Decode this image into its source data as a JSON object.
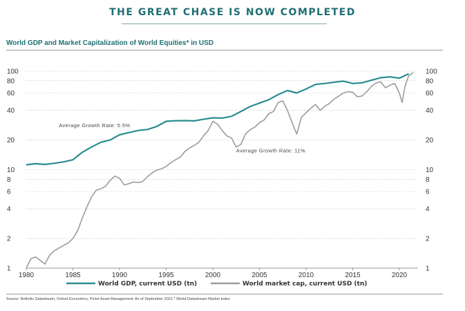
{
  "header": {
    "headline": "THE GREAT CHASE IS NOW COMPLETED",
    "subtitle": "World GDP and Market Capitalization of World Equities* in USD",
    "source": "Source: Refinitiv Datastream, Oxford Economics, Pictet Asset Management. As of September 2021.* World-Datastream Market Index"
  },
  "colors": {
    "gdp": "#2a8c8f",
    "market": "#9b9b9b",
    "grid": "#b9b9b9",
    "text": "#333333"
  },
  "chart_data": {
    "type": "line",
    "yscale": "log",
    "ylim": [
      1,
      100
    ],
    "xlim": [
      1980,
      2022
    ],
    "y_ticks": [
      1,
      2,
      4,
      6,
      8,
      10,
      20,
      40,
      60,
      80,
      100
    ],
    "x_ticks": [
      1980,
      1985,
      1990,
      1995,
      2000,
      2005,
      2010,
      2015,
      2020
    ],
    "grid": true,
    "legend_position": "bottom",
    "annotations": [
      {
        "text": "Average Growth Rate: 5.5%",
        "x": 1983.5,
        "y": 27
      },
      {
        "text": "Average Growth Rate: 11%",
        "x": 2002.5,
        "y": 15
      }
    ],
    "series": [
      {
        "name": "World GDP, current USD (tn)",
        "color": "#2a8c8f",
        "points": [
          [
            1980,
            11.2
          ],
          [
            1981,
            11.5
          ],
          [
            1982,
            11.3
          ],
          [
            1983,
            11.6
          ],
          [
            1984,
            12.0
          ],
          [
            1985,
            12.6
          ],
          [
            1986,
            15.0
          ],
          [
            1987,
            17.0
          ],
          [
            1988,
            19.0
          ],
          [
            1989,
            20.0
          ],
          [
            1990,
            22.6
          ],
          [
            1991,
            23.8
          ],
          [
            1992,
            25.0
          ],
          [
            1993,
            25.6
          ],
          [
            1994,
            27.5
          ],
          [
            1995,
            31.0
          ],
          [
            1996,
            31.4
          ],
          [
            1997,
            31.5
          ],
          [
            1998,
            31.3
          ],
          [
            1999,
            32.5
          ],
          [
            2000,
            33.6
          ],
          [
            2001,
            33.4
          ],
          [
            2002,
            34.8
          ],
          [
            2003,
            38.9
          ],
          [
            2004,
            43.8
          ],
          [
            2005,
            47.4
          ],
          [
            2006,
            51.3
          ],
          [
            2007,
            57.8
          ],
          [
            2008,
            63.6
          ],
          [
            2009,
            60.1
          ],
          [
            2010,
            66.0
          ],
          [
            2011,
            73.3
          ],
          [
            2012,
            75.0
          ],
          [
            2013,
            77.2
          ],
          [
            2014,
            79.3
          ],
          [
            2015,
            75.0
          ],
          [
            2016,
            76.2
          ],
          [
            2017,
            80.9
          ],
          [
            2018,
            85.9
          ],
          [
            2019,
            87.6
          ],
          [
            2020,
            84.9
          ],
          [
            2021,
            94.0
          ]
        ]
      },
      {
        "name": "World market cap, current USD (tn)",
        "color": "#9b9b9b",
        "points": [
          [
            1980,
            1.0
          ],
          [
            1980.5,
            1.25
          ],
          [
            1981,
            1.3
          ],
          [
            1981.5,
            1.2
          ],
          [
            1982,
            1.1
          ],
          [
            1982.5,
            1.35
          ],
          [
            1983,
            1.5
          ],
          [
            1983.5,
            1.6
          ],
          [
            1984,
            1.7
          ],
          [
            1984.5,
            1.8
          ],
          [
            1985,
            2.0
          ],
          [
            1985.5,
            2.4
          ],
          [
            1986,
            3.2
          ],
          [
            1986.5,
            4.2
          ],
          [
            1987,
            5.3
          ],
          [
            1987.5,
            6.2
          ],
          [
            1988,
            6.4
          ],
          [
            1988.5,
            6.8
          ],
          [
            1989,
            7.8
          ],
          [
            1989.5,
            8.6
          ],
          [
            1990,
            8.2
          ],
          [
            1990.5,
            7.0
          ],
          [
            1991,
            7.2
          ],
          [
            1991.5,
            7.5
          ],
          [
            1992,
            7.4
          ],
          [
            1992.5,
            7.6
          ],
          [
            1993,
            8.5
          ],
          [
            1993.5,
            9.3
          ],
          [
            1994,
            9.9
          ],
          [
            1994.5,
            10.2
          ],
          [
            1995,
            10.8
          ],
          [
            1995.5,
            11.8
          ],
          [
            1996,
            12.6
          ],
          [
            1996.5,
            13.4
          ],
          [
            1997,
            15.3
          ],
          [
            1997.5,
            16.6
          ],
          [
            1998,
            17.6
          ],
          [
            1998.5,
            19.0
          ],
          [
            1999,
            22.0
          ],
          [
            1999.5,
            25.0
          ],
          [
            2000,
            31.0
          ],
          [
            2000.5,
            29.0
          ],
          [
            2001,
            25.0
          ],
          [
            2001.5,
            22.0
          ],
          [
            2002,
            21.0
          ],
          [
            2002.5,
            17.0
          ],
          [
            2003,
            18.0
          ],
          [
            2003.5,
            23.0
          ],
          [
            2004,
            25.5
          ],
          [
            2004.5,
            27.0
          ],
          [
            2005,
            30.0
          ],
          [
            2005.5,
            32.0
          ],
          [
            2006,
            37.0
          ],
          [
            2006.5,
            39.0
          ],
          [
            2007,
            48.0
          ],
          [
            2007.5,
            50.0
          ],
          [
            2008,
            40.0
          ],
          [
            2008.5,
            30.0
          ],
          [
            2009,
            23.0
          ],
          [
            2009.5,
            34.0
          ],
          [
            2010,
            38.0
          ],
          [
            2010.5,
            42.0
          ],
          [
            2011,
            46.0
          ],
          [
            2011.5,
            40.0
          ],
          [
            2012,
            44.0
          ],
          [
            2012.5,
            47.0
          ],
          [
            2013,
            52.0
          ],
          [
            2013.5,
            56.0
          ],
          [
            2014,
            60.0
          ],
          [
            2014.5,
            62.0
          ],
          [
            2015,
            61.0
          ],
          [
            2015.5,
            55.0
          ],
          [
            2016,
            56.0
          ],
          [
            2016.5,
            62.0
          ],
          [
            2017,
            70.0
          ],
          [
            2017.5,
            76.0
          ],
          [
            2018,
            78.0
          ],
          [
            2018.5,
            68.0
          ],
          [
            2019,
            72.0
          ],
          [
            2019.5,
            75.0
          ],
          [
            2020,
            60.0
          ],
          [
            2020.3,
            48.0
          ],
          [
            2020.6,
            70.0
          ],
          [
            2021,
            90.0
          ],
          [
            2021.5,
            97.0
          ]
        ]
      }
    ]
  }
}
